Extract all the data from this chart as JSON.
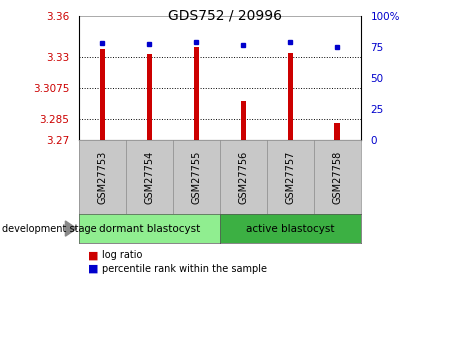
{
  "title": "GDS752 / 20996",
  "samples": [
    "GSM27753",
    "GSM27754",
    "GSM27755",
    "GSM27756",
    "GSM27757",
    "GSM27758"
  ],
  "log_ratio": [
    3.336,
    3.332,
    3.337,
    3.298,
    3.333,
    3.282
  ],
  "percentile_rank": [
    78,
    77,
    79,
    76,
    79,
    75
  ],
  "ylim_left": [
    3.27,
    3.36
  ],
  "ylim_right": [
    0,
    100
  ],
  "yticks_left": [
    3.27,
    3.285,
    3.3075,
    3.33,
    3.36
  ],
  "ytick_labels_left": [
    "3.27",
    "3.285",
    "3.3075",
    "3.33",
    "3.36"
  ],
  "yticks_right": [
    0,
    25,
    50,
    75,
    100
  ],
  "ytick_labels_right": [
    "0",
    "25",
    "50",
    "75",
    "100%"
  ],
  "bar_color": "#cc0000",
  "dot_color": "#0000cc",
  "bar_bottom": 3.27,
  "group1_label": "dormant blastocyst",
  "group2_label": "active blastocyst",
  "group1_color": "#90ee90",
  "group2_color": "#3cb043",
  "sample_box_color": "#c8c8c8",
  "stage_label": "development stage",
  "legend_bar_label": "log ratio",
  "legend_dot_label": "percentile rank within the sample",
  "bar_width": 0.12,
  "background_color": "#ffffff",
  "plot_bg_color": "#ffffff",
  "grid_dotted_color": "#000000",
  "title_fontsize": 10,
  "tick_fontsize": 7.5,
  "sample_fontsize": 7,
  "label_fontsize": 7.5
}
